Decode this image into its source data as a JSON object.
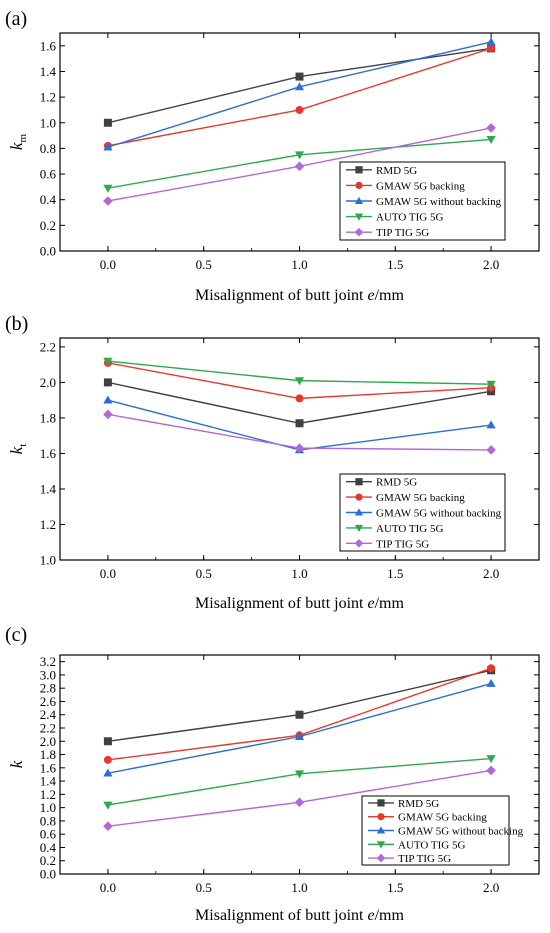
{
  "chart_data": [
    {
      "type": "line",
      "panel": "(a)",
      "ylabel_main": "k",
      "ylabel_sub": "m",
      "xlabel_pre": "Misalignment of butt joint ",
      "xlabel_var": "e",
      "xlabel_post": "/mm",
      "x": [
        0,
        1,
        2
      ],
      "xlim": [
        -0.25,
        2.25
      ],
      "xticks": [
        0,
        0.5,
        1,
        1.5,
        2
      ],
      "xtick_labels": [
        "0.0",
        "0.5",
        "1.0",
        "1.5",
        "2.0"
      ],
      "ylim": [
        0,
        1.7
      ],
      "yticks": [
        0,
        0.2,
        0.4,
        0.6,
        0.8,
        1.0,
        1.2,
        1.4,
        1.6
      ],
      "ytick_labels": [
        "0.0",
        "0.2",
        "0.4",
        "0.6",
        "0.8",
        "1.0",
        "1.2",
        "1.4",
        "1.6"
      ],
      "legend_position": "lower-right",
      "series": [
        {
          "name": "RMD 5G",
          "values": [
            1.0,
            1.36,
            1.58
          ],
          "color": "#404040",
          "marker": "square"
        },
        {
          "name": "GMAW 5G backing",
          "values": [
            0.82,
            1.1,
            1.58
          ],
          "color": "#e8382e",
          "marker": "circle"
        },
        {
          "name": "GMAW 5G without backing",
          "values": [
            0.81,
            1.28,
            1.63
          ],
          "color": "#2a6fd1",
          "marker": "triangle-up"
        },
        {
          "name": "AUTO TIG 5G",
          "values": [
            0.49,
            0.75,
            0.87
          ],
          "color": "#2fa84f",
          "marker": "triangle-down"
        },
        {
          "name": "TIP TIG 5G",
          "values": [
            0.39,
            0.66,
            0.96
          ],
          "color": "#b06ad8",
          "marker": "diamond"
        }
      ]
    },
    {
      "type": "line",
      "panel": "(b)",
      "ylabel_main": "k",
      "ylabel_sub": "t",
      "xlabel_pre": "Misalignment of butt joint ",
      "xlabel_var": "e",
      "xlabel_post": "/mm",
      "x": [
        0,
        1,
        2
      ],
      "xlim": [
        -0.25,
        2.25
      ],
      "xticks": [
        0,
        0.5,
        1,
        1.5,
        2
      ],
      "xtick_labels": [
        "0.0",
        "0.5",
        "1.0",
        "1.5",
        "2.0"
      ],
      "ylim": [
        1.0,
        2.25
      ],
      "yticks": [
        1.0,
        1.2,
        1.4,
        1.6,
        1.8,
        2.0,
        2.2
      ],
      "ytick_labels": [
        "1.0",
        "1.2",
        "1.4",
        "1.6",
        "1.8",
        "2.0",
        "2.2"
      ],
      "legend_position": "lower-right",
      "series": [
        {
          "name": "RMD 5G",
          "values": [
            2.0,
            1.77,
            1.95
          ],
          "color": "#404040",
          "marker": "square"
        },
        {
          "name": "GMAW 5G backing",
          "values": [
            2.11,
            1.91,
            1.97
          ],
          "color": "#e8382e",
          "marker": "circle"
        },
        {
          "name": "GMAW 5G without backing",
          "values": [
            1.9,
            1.62,
            1.76
          ],
          "color": "#2a6fd1",
          "marker": "triangle-up"
        },
        {
          "name": "AUTO TIG 5G",
          "values": [
            2.12,
            2.01,
            1.99
          ],
          "color": "#2fa84f",
          "marker": "triangle-down"
        },
        {
          "name": "TIP TIG 5G",
          "values": [
            1.82,
            1.63,
            1.62
          ],
          "color": "#b06ad8",
          "marker": "diamond"
        }
      ]
    },
    {
      "type": "line",
      "panel": "(c)",
      "ylabel_main": "k",
      "ylabel_sub": "",
      "xlabel_pre": "Misalignment of butt joint ",
      "xlabel_var": "e",
      "xlabel_post": "/mm",
      "x": [
        0,
        1,
        2
      ],
      "xlim": [
        -0.25,
        2.25
      ],
      "xticks": [
        0,
        0.5,
        1,
        1.5,
        2
      ],
      "xtick_labels": [
        "0.0",
        "0.5",
        "1.0",
        "1.5",
        "2.0"
      ],
      "ylim": [
        0,
        3.3
      ],
      "yticks": [
        0,
        0.2,
        0.4,
        0.6,
        0.8,
        1.0,
        1.2,
        1.4,
        1.6,
        1.8,
        2.0,
        2.2,
        2.4,
        2.6,
        2.8,
        3.0,
        3.2
      ],
      "ytick_labels": [
        "0.0",
        "0.2",
        "0.4",
        "0.6",
        "0.8",
        "1.0",
        "1.2",
        "1.4",
        "1.6",
        "1.8",
        "2.0",
        "2.2",
        "2.4",
        "2.6",
        "2.8",
        "3.0",
        "3.2"
      ],
      "legend_position": "lower-right",
      "series": [
        {
          "name": "RMD 5G",
          "values": [
            2.0,
            2.4,
            3.07
          ],
          "color": "#404040",
          "marker": "square"
        },
        {
          "name": "GMAW 5G backing",
          "values": [
            1.72,
            2.09,
            3.1
          ],
          "color": "#e8382e",
          "marker": "circle"
        },
        {
          "name": "GMAW 5G without backing",
          "values": [
            1.52,
            2.07,
            2.87
          ],
          "color": "#2a6fd1",
          "marker": "triangle-up"
        },
        {
          "name": "AUTO TIG 5G",
          "values": [
            1.04,
            1.51,
            1.74
          ],
          "color": "#2fa84f",
          "marker": "triangle-down"
        },
        {
          "name": "TIP TIG 5G",
          "values": [
            0.72,
            1.08,
            1.56
          ],
          "color": "#b06ad8",
          "marker": "diamond"
        }
      ]
    }
  ]
}
